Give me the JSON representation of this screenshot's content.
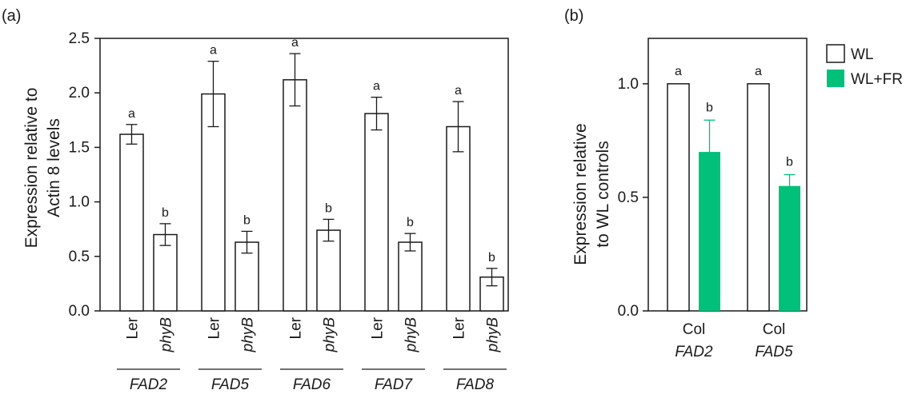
{
  "panels": {
    "a": {
      "label": "(a)",
      "ylabel": [
        "Expression relative to",
        "Actin 8 levels"
      ],
      "yticks": [
        "0.0",
        "0.5",
        "1.0",
        "1.5",
        "2.0",
        "2.5"
      ],
      "sample_labels": [
        "Ler",
        "phyB"
      ],
      "genes": [
        "FAD2",
        "FAD5",
        "FAD6",
        "FAD7",
        "FAD8"
      ]
    },
    "b": {
      "label": "(b)",
      "ylabel": [
        "Expression relative",
        "to WL controls"
      ],
      "yticks": [
        "0.0",
        "0.5",
        "1.0"
      ],
      "cat_top": [
        "Col",
        "Col"
      ],
      "genes": [
        "FAD2",
        "FAD5"
      ],
      "legend": [
        "WL",
        "WL+FR"
      ]
    }
  },
  "colors": {
    "fr": "#00c07a",
    "outline": "#1a1a1a",
    "bar_white": "#ffffff"
  },
  "chart_data": [
    {
      "type": "bar",
      "categories": [
        "FAD2",
        "FAD5",
        "FAD6",
        "FAD7",
        "FAD8"
      ],
      "series": [
        {
          "name": "Ler",
          "values": [
            1.62,
            1.99,
            2.12,
            1.81,
            1.69
          ],
          "errors": [
            0.09,
            0.3,
            0.24,
            0.15,
            0.23
          ],
          "sig": [
            "a",
            "a",
            "a",
            "a",
            "a"
          ]
        },
        {
          "name": "phyB",
          "values": [
            0.7,
            0.63,
            0.74,
            0.63,
            0.31
          ],
          "errors": [
            0.1,
            0.1,
            0.1,
            0.08,
            0.08
          ],
          "sig": [
            "b",
            "b",
            "b",
            "b",
            "b"
          ]
        }
      ],
      "ylabel": "Expression relative to Actin 8 levels",
      "ylim": [
        0,
        2.5
      ]
    },
    {
      "type": "bar",
      "categories": [
        "FAD2",
        "FAD5"
      ],
      "series": [
        {
          "name": "WL",
          "values": [
            1.0,
            1.0
          ],
          "errors": [
            0,
            0
          ],
          "sig": [
            "a",
            "a"
          ]
        },
        {
          "name": "WL+FR",
          "values": [
            0.7,
            0.55
          ],
          "errors": [
            0.14,
            0.05
          ],
          "sig": [
            "b",
            "b"
          ]
        }
      ],
      "ylabel": "Expression relative to WL controls",
      "ylim": [
        0,
        1.2
      ],
      "legend_position": "top-right"
    }
  ]
}
